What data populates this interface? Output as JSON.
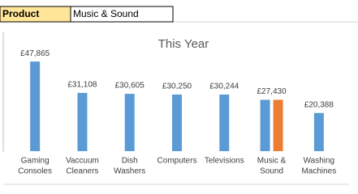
{
  "filter": {
    "label": "Product",
    "value": "Music & Sound"
  },
  "chart_data": {
    "type": "bar",
    "title": "This Year",
    "categories": [
      [
        "Gaming",
        "Consoles"
      ],
      [
        "Vaccuum",
        "Cleaners"
      ],
      [
        "Dish",
        "Washers"
      ],
      [
        "Computers"
      ],
      [
        "Televisions"
      ],
      [
        "Music &",
        "Sound"
      ],
      [
        "Washing",
        "Machines"
      ]
    ],
    "series": [
      {
        "color": "#5b9bd5",
        "values": [
          47865,
          31108,
          30605,
          30250,
          30244,
          27430,
          20388
        ],
        "value_labels": [
          "£47,865",
          "£31,108",
          "£30,605",
          "£30,250",
          "£30,244",
          "£27,430",
          "£20,388"
        ]
      },
      {
        "color": "#ed7d31",
        "values": [
          null,
          null,
          null,
          null,
          null,
          27430,
          null
        ]
      }
    ],
    "ylim": [
      0,
      60000
    ]
  }
}
